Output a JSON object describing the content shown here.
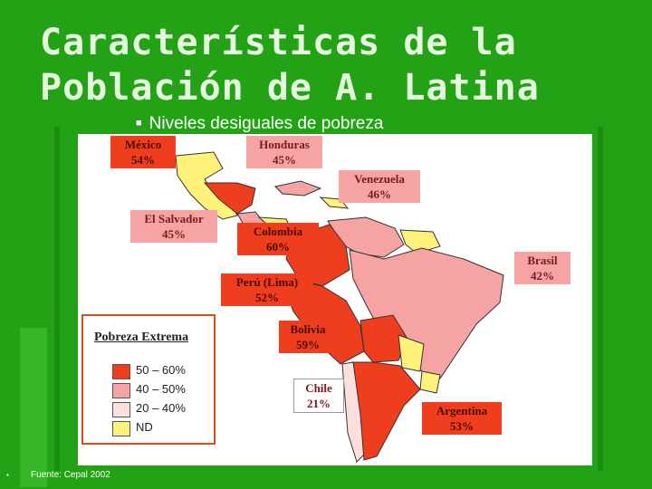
{
  "title": {
    "line1": "Características de la",
    "line2": "Población de A. Latina"
  },
  "bullet": {
    "text": "Niveles desiguales de pobreza"
  },
  "colors": {
    "background": "#22a214",
    "range_50_60": "#ee3e1e",
    "range_40_50": "#f5a3a3",
    "range_20_40": "#fde0dd",
    "no_data": "#fff27a"
  },
  "map": {
    "countries": [
      {
        "name": "México",
        "value": "54%",
        "color": "red"
      },
      {
        "name": "Honduras",
        "value": "45%",
        "color": "pink"
      },
      {
        "name": "Venezuela",
        "value": "46%",
        "color": "pink"
      },
      {
        "name": "El Salvador",
        "value": "45%",
        "color": "pink"
      },
      {
        "name": "Colombia",
        "value": "60%",
        "color": "red"
      },
      {
        "name": "Brasil",
        "value": "42%",
        "color": "pink"
      },
      {
        "name": "Perú (Lima)",
        "value": "52%",
        "color": "red"
      },
      {
        "name": "Bolivia",
        "value": "59%",
        "color": "red"
      },
      {
        "name": "Chile",
        "value": "21%",
        "color": "plain"
      },
      {
        "name": "Argentina",
        "value": "53%",
        "color": "red"
      }
    ]
  },
  "legend": {
    "title": "Pobreza Extrema",
    "items": [
      {
        "label": "50 – 60%",
        "color": "#ee3e1e"
      },
      {
        "label": "40 – 50%",
        "color": "#f5a3a3"
      },
      {
        "label": "20 – 40%",
        "color": "#fde0dd"
      },
      {
        "label": "ND",
        "color": "#fff27a"
      }
    ]
  },
  "footer": {
    "bullet": "▪",
    "source": "Fuente: Cepal 2002"
  }
}
